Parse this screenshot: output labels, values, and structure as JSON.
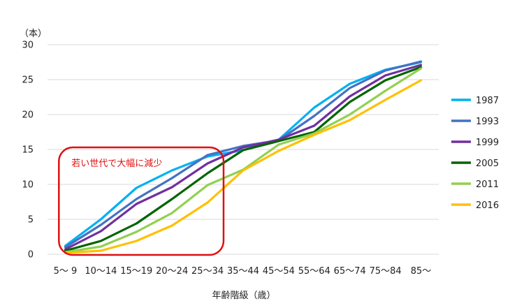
{
  "chart_data": {
    "type": "line",
    "unit_label": "（本）",
    "xlabel": "年齢階級（歳）",
    "ylabel": "",
    "ylim": [
      0,
      30
    ],
    "yticks": [
      0,
      5,
      10,
      15,
      20,
      25,
      30
    ],
    "grid": true,
    "legend_position": "right",
    "categories": [
      "5～ 9",
      "10～14",
      "15～19",
      "20～24",
      "25～34",
      "35～44",
      "45～54",
      "55～64",
      "65～74",
      "75～84",
      "85～"
    ],
    "series": [
      {
        "name": "1987",
        "color": "#00b0f0",
        "values": [
          1.2,
          5.0,
          9.5,
          12.0,
          14.0,
          14.9,
          16.4,
          21.0,
          24.4,
          26.4,
          27.5
        ]
      },
      {
        "name": "1993",
        "color": "#4472c4",
        "values": [
          1.0,
          4.2,
          7.9,
          10.9,
          14.2,
          15.5,
          16.3,
          19.8,
          23.8,
          26.3,
          27.6
        ]
      },
      {
        "name": "1999",
        "color": "#7030a0",
        "values": [
          0.7,
          3.3,
          7.2,
          9.6,
          13.0,
          15.3,
          16.4,
          18.4,
          22.6,
          25.6,
          27.1
        ]
      },
      {
        "name": "2005",
        "color": "#006400",
        "values": [
          0.5,
          1.9,
          4.4,
          7.9,
          11.6,
          14.9,
          16.2,
          17.5,
          21.8,
          24.9,
          26.8
        ]
      },
      {
        "name": "2011",
        "color": "#92d050",
        "values": [
          0.3,
          1.1,
          3.2,
          5.9,
          9.9,
          12.1,
          15.7,
          17.3,
          20.0,
          23.4,
          26.6
        ]
      },
      {
        "name": "2016",
        "color": "#ffc000",
        "values": [
          0.2,
          0.5,
          1.9,
          4.1,
          7.4,
          12.0,
          14.8,
          17.1,
          19.2,
          22.1,
          24.9
        ]
      }
    ],
    "annotation": {
      "text": "若い世代で大幅に減少",
      "color": "#e01010",
      "from_category": "5～ 9",
      "to_category": "25～34",
      "y_range": [
        0,
        15
      ]
    }
  }
}
